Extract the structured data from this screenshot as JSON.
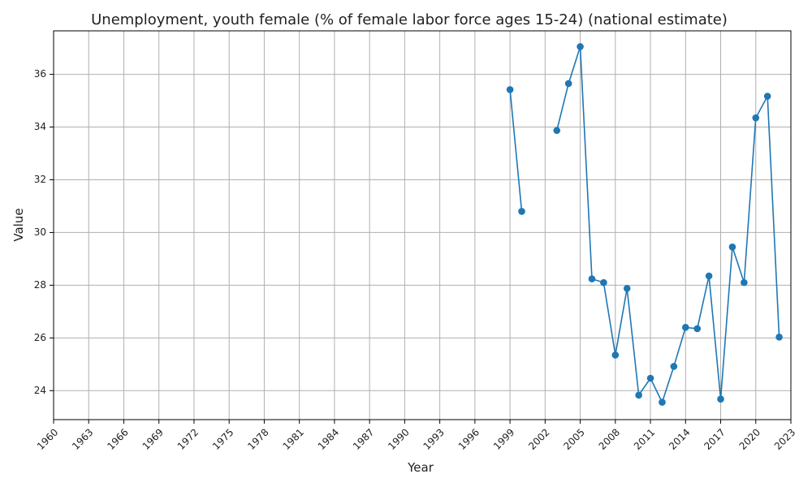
{
  "chart_data": {
    "type": "line",
    "title": "Unemployment, youth female (% of female labor force ages 15-24) (national estimate)",
    "xlabel": "Year",
    "ylabel": "Value",
    "xlim": [
      1960,
      2023
    ],
    "ylim": [
      22.9,
      37.65
    ],
    "grid": true,
    "x_ticks": [
      "1960",
      "1963",
      "1966",
      "1969",
      "1972",
      "1975",
      "1978",
      "1981",
      "1984",
      "1987",
      "1990",
      "1993",
      "1996",
      "1999",
      "2002",
      "2005",
      "2008",
      "2011",
      "2014",
      "2017",
      "2020",
      "2023"
    ],
    "y_ticks": [
      "24",
      "26",
      "28",
      "30",
      "32",
      "34",
      "36"
    ],
    "color": "#1f77b4",
    "series": [
      {
        "segments": [
          [
            [
              1999,
              35.42
            ],
            [
              2000,
              30.8
            ]
          ],
          [
            [
              2003,
              33.87
            ],
            [
              2004,
              35.65
            ],
            [
              2005,
              37.05
            ],
            [
              2006,
              28.24
            ],
            [
              2007,
              28.1
            ],
            [
              2008,
              25.35
            ],
            [
              2009,
              27.88
            ],
            [
              2010,
              23.83
            ],
            [
              2011,
              24.47
            ],
            [
              2012,
              23.56
            ],
            [
              2013,
              24.92
            ],
            [
              2014,
              26.4
            ],
            [
              2015,
              26.35
            ],
            [
              2016,
              28.35
            ],
            [
              2017,
              23.68
            ],
            [
              2018,
              29.45
            ],
            [
              2019,
              28.1
            ],
            [
              2020,
              34.35
            ],
            [
              2021,
              35.17
            ],
            [
              2022,
              26.03
            ]
          ]
        ]
      }
    ]
  }
}
